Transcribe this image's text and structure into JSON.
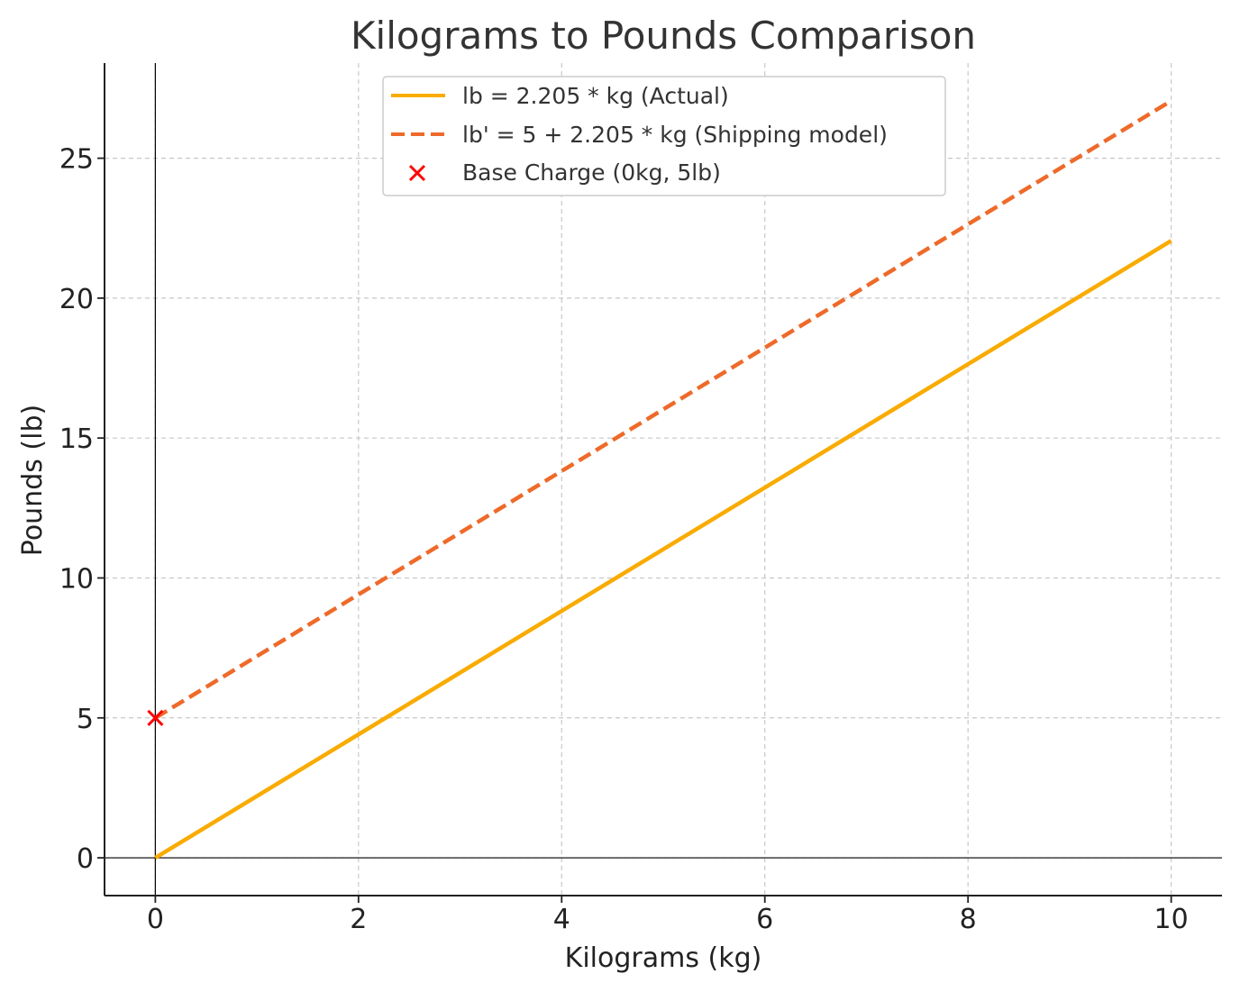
{
  "chart_data": {
    "type": "line",
    "title": "Kilograms to Pounds Comparison",
    "xlabel": "Kilograms (kg)",
    "ylabel": "Pounds (lb)",
    "xlim": [
      -0.5,
      10.5
    ],
    "ylim": [
      -1.35,
      28.4
    ],
    "x_ticks": [
      0,
      2,
      4,
      6,
      8,
      10
    ],
    "y_ticks": [
      0,
      5,
      10,
      15,
      20,
      25
    ],
    "x_tick_labels": [
      "0",
      "2",
      "4",
      "6",
      "8",
      "10"
    ],
    "y_tick_labels": [
      "0",
      "5",
      "10",
      "15",
      "20",
      "25"
    ],
    "grid": true,
    "legend_position": "top-center",
    "series": [
      {
        "name": "lb = 2.205 * kg (Actual)",
        "style": "solid",
        "color": "#F9AB00",
        "x": [
          0,
          10
        ],
        "y": [
          0,
          22.05
        ]
      },
      {
        "name": "lb' = 5 + 2.205 * kg (Shipping model)",
        "style": "dashed",
        "color": "#EE6A2A",
        "x": [
          0,
          10
        ],
        "y": [
          5,
          27.05
        ]
      }
    ],
    "points": [
      {
        "name": "Base Charge (0kg, 5lb)",
        "marker": "x",
        "color": "#FF0000",
        "x": 0,
        "y": 5
      }
    ],
    "reference_lines": {
      "vertical_x": 0,
      "horizontal_y": 0,
      "color": "#000000"
    }
  }
}
